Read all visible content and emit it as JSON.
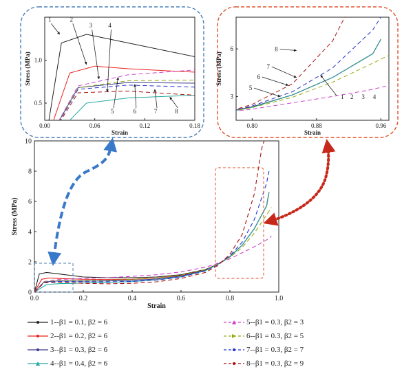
{
  "colors": {
    "c1": "#222222",
    "c2": "#e8231e",
    "c3": "#3b3b8f",
    "c4": "#22aaa0",
    "c5": "#cc44cc",
    "c6": "#99aa11",
    "c7": "#2233cc",
    "c8": "#aa1111",
    "blue_frame": "#4a7fb8",
    "red_frame": "#e0502a",
    "blue_arrow": "#3a79c9",
    "red_arrow": "#c8281a"
  },
  "chart_data": [
    {
      "id": "main",
      "type": "line",
      "xlabel": "Strain",
      "ylabel": "Stress (MPa)",
      "xlim": [
        0.0,
        1.0
      ],
      "ylim": [
        0,
        10
      ],
      "xticks": [
        "0.0",
        "0.2",
        "0.4",
        "0.6",
        "0.8",
        "1.0"
      ],
      "yticks": [
        "0",
        "2",
        "4",
        "6",
        "8",
        "10"
      ],
      "series": [
        {
          "name": "1--β1 = 0.1, β2 = 6",
          "key": "c1",
          "dash": "solid",
          "points": [
            [
              0.0,
              0
            ],
            [
              0.02,
              1.2
            ],
            [
              0.05,
              1.3
            ],
            [
              0.1,
              1.2
            ],
            [
              0.2,
              1.0
            ],
            [
              0.3,
              0.95
            ],
            [
              0.4,
              0.95
            ],
            [
              0.5,
              1.0
            ],
            [
              0.6,
              1.15
            ],
            [
              0.7,
              1.5
            ],
            [
              0.75,
              1.85
            ],
            [
              0.8,
              2.35
            ],
            [
              0.85,
              3.1
            ],
            [
              0.9,
              4.2
            ],
            [
              0.95,
              5.7
            ],
            [
              0.96,
              6.6
            ]
          ]
        },
        {
          "name": "2--β1 = 0.2, β2 = 6",
          "key": "c2",
          "dash": "solid",
          "points": [
            [
              0.0,
              0
            ],
            [
              0.03,
              0.85
            ],
            [
              0.06,
              0.93
            ],
            [
              0.1,
              0.9
            ],
            [
              0.2,
              0.85
            ],
            [
              0.3,
              0.83
            ],
            [
              0.4,
              0.85
            ],
            [
              0.5,
              0.93
            ],
            [
              0.6,
              1.1
            ],
            [
              0.7,
              1.47
            ],
            [
              0.75,
              1.85
            ],
            [
              0.8,
              2.33
            ],
            [
              0.85,
              3.1
            ],
            [
              0.9,
              4.2
            ],
            [
              0.95,
              5.7
            ],
            [
              0.96,
              6.6
            ]
          ]
        },
        {
          "name": "3--β1 = 0.3, β2 = 6",
          "key": "c3",
          "dash": "solid",
          "points": [
            [
              0.0,
              0
            ],
            [
              0.04,
              0.68
            ],
            [
              0.1,
              0.74
            ],
            [
              0.2,
              0.73
            ],
            [
              0.3,
              0.74
            ],
            [
              0.4,
              0.78
            ],
            [
              0.5,
              0.87
            ],
            [
              0.6,
              1.06
            ],
            [
              0.7,
              1.45
            ],
            [
              0.75,
              1.84
            ],
            [
              0.8,
              2.33
            ],
            [
              0.85,
              3.1
            ],
            [
              0.9,
              4.2
            ],
            [
              0.95,
              5.7
            ],
            [
              0.96,
              6.6
            ]
          ]
        },
        {
          "name": "4--β1 = 0.4, β2 = 6",
          "key": "c4",
          "dash": "solid",
          "points": [
            [
              0.0,
              0
            ],
            [
              0.05,
              0.5
            ],
            [
              0.1,
              0.56
            ],
            [
              0.2,
              0.6
            ],
            [
              0.3,
              0.64
            ],
            [
              0.4,
              0.7
            ],
            [
              0.5,
              0.8
            ],
            [
              0.6,
              1.0
            ],
            [
              0.7,
              1.42
            ],
            [
              0.75,
              1.82
            ],
            [
              0.8,
              2.32
            ],
            [
              0.85,
              3.1
            ],
            [
              0.9,
              4.2
            ],
            [
              0.95,
              5.7
            ],
            [
              0.96,
              6.6
            ]
          ]
        },
        {
          "name": "5--β1 = 0.3, β2 = 3",
          "key": "c5",
          "dash": "dash",
          "points": [
            [
              0.0,
              0
            ],
            [
              0.04,
              0.7
            ],
            [
              0.1,
              0.83
            ],
            [
              0.2,
              0.9
            ],
            [
              0.3,
              0.96
            ],
            [
              0.4,
              1.04
            ],
            [
              0.5,
              1.15
            ],
            [
              0.6,
              1.33
            ],
            [
              0.7,
              1.65
            ],
            [
              0.75,
              1.9
            ],
            [
              0.8,
              2.2
            ],
            [
              0.85,
              2.6
            ],
            [
              0.9,
              3.0
            ],
            [
              0.95,
              3.45
            ],
            [
              0.97,
              3.7
            ]
          ]
        },
        {
          "name": "6--β1 = 0.3, β2 = 5",
          "key": "c6",
          "dash": "dash",
          "points": [
            [
              0.0,
              0
            ],
            [
              0.04,
              0.68
            ],
            [
              0.1,
              0.76
            ],
            [
              0.2,
              0.77
            ],
            [
              0.3,
              0.79
            ],
            [
              0.4,
              0.84
            ],
            [
              0.5,
              0.93
            ],
            [
              0.6,
              1.12
            ],
            [
              0.7,
              1.5
            ],
            [
              0.75,
              1.85
            ],
            [
              0.8,
              2.3
            ],
            [
              0.85,
              2.95
            ],
            [
              0.9,
              3.9
            ],
            [
              0.95,
              5.1
            ],
            [
              0.97,
              5.6
            ]
          ]
        },
        {
          "name": "7--β1 = 0.3, β2 = 7",
          "key": "c7",
          "dash": "dash",
          "points": [
            [
              0.0,
              0
            ],
            [
              0.04,
              0.66
            ],
            [
              0.1,
              0.71
            ],
            [
              0.2,
              0.68
            ],
            [
              0.3,
              0.68
            ],
            [
              0.4,
              0.71
            ],
            [
              0.5,
              0.8
            ],
            [
              0.6,
              1.0
            ],
            [
              0.7,
              1.4
            ],
            [
              0.75,
              1.8
            ],
            [
              0.8,
              2.4
            ],
            [
              0.85,
              3.3
            ],
            [
              0.9,
              4.8
            ],
            [
              0.95,
              7.2
            ],
            [
              0.96,
              8.0
            ]
          ]
        },
        {
          "name": "8--β1 = 0.3, β2 = 9",
          "key": "c8",
          "dash": "dash",
          "points": [
            [
              0.0,
              0
            ],
            [
              0.04,
              0.62
            ],
            [
              0.1,
              0.64
            ],
            [
              0.2,
              0.58
            ],
            [
              0.3,
              0.55
            ],
            [
              0.4,
              0.58
            ],
            [
              0.5,
              0.68
            ],
            [
              0.6,
              0.9
            ],
            [
              0.7,
              1.3
            ],
            [
              0.75,
              1.75
            ],
            [
              0.8,
              2.5
            ],
            [
              0.85,
              3.8
            ],
            [
              0.9,
              6.5
            ],
            [
              0.93,
              9.5
            ],
            [
              0.94,
              10
            ]
          ]
        }
      ]
    },
    {
      "id": "inset_left",
      "type": "line",
      "xlabel": "Strain",
      "ylabel": "Stress (MPa)",
      "xlim": [
        0.0,
        0.18
      ],
      "ylim": [
        0.3,
        1.5
      ],
      "xticks": [
        "0.00",
        "0.06",
        "0.12",
        "0.18"
      ],
      "yticks": [
        "0.5",
        "1.0"
      ],
      "labels": [
        "1",
        "2",
        "3",
        "4",
        "5",
        "6",
        "7",
        "8"
      ]
    },
    {
      "id": "inset_right",
      "type": "line",
      "xlabel": "Strain",
      "ylabel": "Stress (MPa)",
      "xlim": [
        0.78,
        0.97
      ],
      "ylim": [
        1.5,
        8.0
      ],
      "xticks": [
        "0.80",
        "0.88",
        "0.96"
      ],
      "yticks": [
        "3",
        "6"
      ],
      "labels": [
        "8",
        "7",
        "6",
        "5",
        "1",
        "2",
        "3",
        "4"
      ]
    }
  ]
}
